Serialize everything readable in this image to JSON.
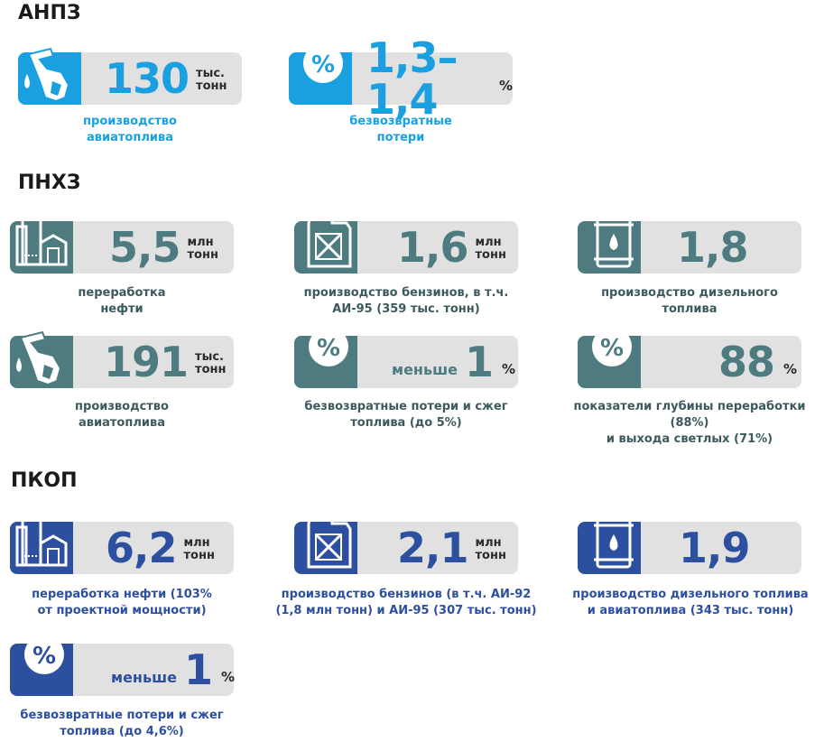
{
  "colors": {
    "anpz": "#1aa0e0",
    "pnhz": "#4d7b80",
    "pkop": "#2c4fa0",
    "card": "#e1e1e2"
  },
  "sections": {
    "anpz": {
      "title": "АНПЗ",
      "cards": [
        {
          "icon": "fuel-nozzle-icon",
          "value": "130",
          "unit1": "тыс.",
          "unit2": "тонн",
          "caption": "производство\nавиатоплива"
        },
        {
          "icon": "percent-icon",
          "value": "1,3–1,4",
          "pct": "%",
          "caption": "безвозвратные\nпотери"
        }
      ]
    },
    "pnhz": {
      "title": "ПНХЗ",
      "cards": [
        {
          "icon": "refinery-icon",
          "value": "5,5",
          "unit1": "млн",
          "unit2": "тонн",
          "caption": "переработка\nнефти"
        },
        {
          "icon": "jerrycan-icon",
          "value": "1,6",
          "unit1": "млн",
          "unit2": "тонн",
          "caption": "производство бензинов, в т.ч.\nАИ-95 (359 тыс. тонн)"
        },
        {
          "icon": "oil-barrel-icon",
          "value": "1,8",
          "caption": "производство дизельного\nтоплива"
        },
        {
          "icon": "fuel-nozzle-icon",
          "value": "191",
          "unit1": "тыс.",
          "unit2": "тонн",
          "caption": "производство\nавиатоплива"
        },
        {
          "icon": "percent-icon",
          "pre": "меньше",
          "value": "1",
          "pct": "%",
          "caption": "безвозвратные потери и сжег\nтоплива (до 5%)"
        },
        {
          "icon": "percent-icon",
          "value": "88",
          "pct": "%",
          "caption": "показатели глубины переработки (88%)\nи выхода светлых (71%)"
        }
      ]
    },
    "pkop": {
      "title": "ПКОП",
      "cards": [
        {
          "icon": "refinery-icon",
          "value": "6,2",
          "unit1": "млн",
          "unit2": "тонн",
          "caption": "переработка нефти (103%\nот проектной мощности)"
        },
        {
          "icon": "jerrycan-icon",
          "value": "2,1",
          "unit1": "млн",
          "unit2": "тонн",
          "caption": "производство бензинов (в т.ч. АИ-92\n(1,8 млн тонн) и АИ-95 (307 тыс. тонн)"
        },
        {
          "icon": "oil-barrel-icon",
          "value": "1,9",
          "caption": "производство дизельного топлива\nи авиатоплива (343 тыс. тонн)"
        },
        {
          "icon": "percent-icon",
          "pre": "меньше",
          "value": "1",
          "pct": "%",
          "caption": "безвозвратные потери и сжег\nтоплива (до 4,6%)"
        }
      ]
    }
  }
}
